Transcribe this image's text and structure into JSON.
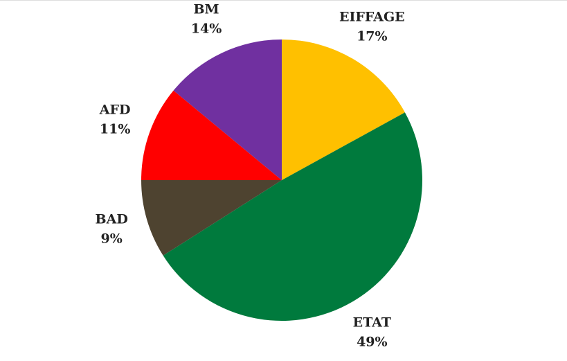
{
  "chart_data": {
    "type": "pie",
    "categories": [
      "EIFFAGE",
      "ETAT",
      "BAD",
      "AFD",
      "BM"
    ],
    "values": [
      17,
      49,
      9,
      11,
      14
    ],
    "value_labels": [
      "17%",
      "49%",
      "9%",
      "11%",
      "14%"
    ],
    "colors": [
      "#FFC000",
      "#007A3D",
      "#4E4330",
      "#FF0000",
      "#7030A0"
    ]
  }
}
